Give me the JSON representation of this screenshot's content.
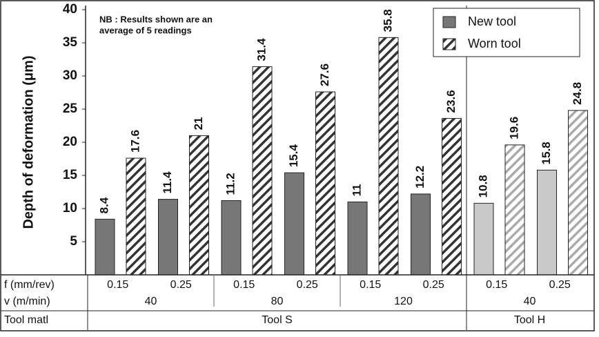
{
  "chart_data": {
    "type": "bar",
    "y_label": "Depth of deformation (μm)",
    "annotation": [
      "NB : Results shown are an",
      "average of 5 readings"
    ],
    "categories": [
      "0.15",
      "0.25",
      "0.15",
      "0.25",
      "0.15",
      "0.25",
      "0.15",
      "0.25"
    ],
    "series": [
      {
        "name": "New tool",
        "color": "#777777",
        "hatch": false,
        "bar_colors": [
          "#777777",
          "#777777",
          "#777777",
          "#777777",
          "#777777",
          "#777777",
          "#c9c9c9",
          "#c9c9c9"
        ],
        "values": [
          8.4,
          11.4,
          11.2,
          15.4,
          11,
          12.2,
          10.8,
          15.8
        ]
      },
      {
        "name": "Worn tool",
        "color": "#333333",
        "hatch": true,
        "bar_colors": [
          "#333333",
          "#333333",
          "#333333",
          "#333333",
          "#333333",
          "#333333",
          "#aaaaaa",
          "#aaaaaa"
        ],
        "values": [
          17.6,
          21,
          31.4,
          27.6,
          35.8,
          23.6,
          19.6,
          24.8
        ]
      }
    ],
    "table_rows": [
      {
        "label": "f (mm/rev)",
        "cells": [
          "0.15",
          "0.25",
          "0.15",
          "0.25",
          "0.15",
          "0.25",
          "0.15",
          "0.25"
        ]
      },
      {
        "label": "v (m/min)",
        "cells": [
          "40",
          null,
          "80",
          null,
          "120",
          null,
          "40",
          null
        ]
      },
      {
        "label": "Tool matl",
        "cells": [
          "Tool S",
          null,
          null,
          null,
          null,
          null,
          "Tool H",
          null
        ]
      }
    ],
    "ylim": [
      0,
      40
    ],
    "yticks": [
      5,
      10,
      15,
      20,
      25,
      30,
      35,
      40
    ],
    "legend": "top-right"
  }
}
